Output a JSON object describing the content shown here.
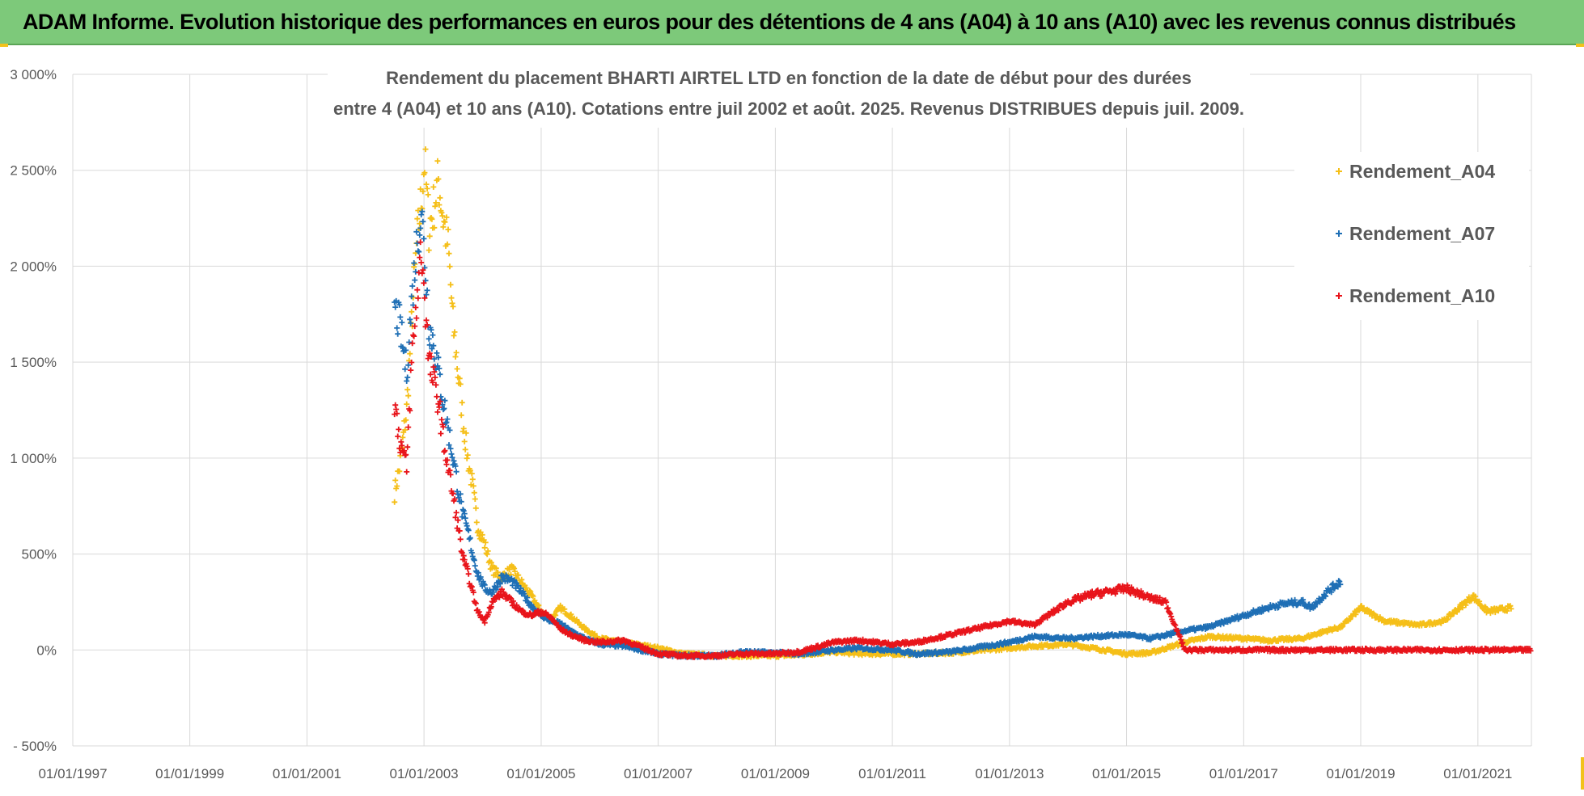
{
  "banner": {
    "title": "ADAM Informe. Evolution historique des performances en euros pour des détentions de 4 ans (A04) à 10 ans (A10) avec les revenus connus distribués"
  },
  "colors": {
    "banner": "#7dc97a",
    "a04": "#f5bf18",
    "a07": "#1f6fb5",
    "a10": "#e8141b",
    "grid": "#d9d9d9",
    "text": "#595959"
  },
  "chart_data": {
    "type": "scatter",
    "title_lines": [
      "Rendement du placement BHARTI AIRTEL LTD en fonction de la date de début pour des durées",
      "entre 4 (A04) et 10 ans (A10).  Cotations entre juil 2002 et août. 2025.  Revenus DISTRIBUES depuis juil. 2009."
    ],
    "xlabel": "",
    "ylabel": "",
    "x_range": [
      "1997-01-01",
      "2021-12-01"
    ],
    "x_ticks": [
      "01/01/1997",
      "01/01/1999",
      "01/01/2001",
      "01/01/2003",
      "01/01/2005",
      "01/01/2007",
      "01/01/2009",
      "01/01/2011",
      "01/01/2013",
      "01/01/2015",
      "01/01/2017",
      "01/01/2019",
      "01/01/2021"
    ],
    "y_range": [
      -500,
      3000
    ],
    "y_ticks": [
      -500,
      0,
      500,
      1000,
      1500,
      2000,
      2500,
      3000
    ],
    "y_tick_labels": [
      "- 500%",
      "0%",
      "500%",
      "1 000%",
      "1 500%",
      "2 000%",
      "2 500%",
      "3 000%"
    ],
    "y_unit": "%",
    "grid": true,
    "legend_position": "top-right",
    "marker": "+",
    "series": [
      {
        "name": "Rendement_A04",
        "color": "#f5bf18",
        "points": [
          [
            "2002-07-01",
            820
          ],
          [
            "2002-08-01",
            950
          ],
          [
            "2002-09-15",
            1250
          ],
          [
            "2002-10-15",
            1700
          ],
          [
            "2002-11-15",
            2100
          ],
          [
            "2002-12-15",
            2350
          ],
          [
            "2003-01-05",
            2550
          ],
          [
            "2003-02-01",
            2200
          ],
          [
            "2003-03-01",
            2300
          ],
          [
            "2003-04-01",
            2450
          ],
          [
            "2003-05-01",
            2250
          ],
          [
            "2003-06-01",
            2100
          ],
          [
            "2003-07-01",
            1700
          ],
          [
            "2003-08-01",
            1450
          ],
          [
            "2003-09-01",
            1200
          ],
          [
            "2003-10-01",
            1000
          ],
          [
            "2003-11-01",
            850
          ],
          [
            "2003-12-01",
            650
          ],
          [
            "2004-01-15",
            550
          ],
          [
            "2004-03-01",
            420
          ],
          [
            "2004-05-01",
            380
          ],
          [
            "2004-07-01",
            420
          ],
          [
            "2004-09-01",
            350
          ],
          [
            "2004-11-01",
            280
          ],
          [
            "2005-01-01",
            200
          ],
          [
            "2005-03-01",
            160
          ],
          [
            "2005-05-01",
            220
          ],
          [
            "2005-07-01",
            180
          ],
          [
            "2005-10-01",
            110
          ],
          [
            "2006-01-01",
            60
          ],
          [
            "2006-06-01",
            40
          ],
          [
            "2007-01-01",
            10
          ],
          [
            "2007-06-01",
            -20
          ],
          [
            "2008-01-01",
            -30
          ],
          [
            "2008-06-01",
            -30
          ],
          [
            "2009-01-01",
            -30
          ],
          [
            "2009-06-01",
            -25
          ],
          [
            "2010-01-01",
            -10
          ],
          [
            "2010-06-01",
            -20
          ],
          [
            "2011-01-01",
            -20
          ],
          [
            "2011-06-01",
            -20
          ],
          [
            "2012-01-01",
            -15
          ],
          [
            "2012-06-01",
            -5
          ],
          [
            "2013-01-01",
            10
          ],
          [
            "2013-06-01",
            20
          ],
          [
            "2014-01-01",
            30
          ],
          [
            "2014-06-01",
            10
          ],
          [
            "2015-01-01",
            -20
          ],
          [
            "2015-06-01",
            -15
          ],
          [
            "2016-01-01",
            40
          ],
          [
            "2016-06-01",
            70
          ],
          [
            "2017-01-01",
            60
          ],
          [
            "2017-06-01",
            50
          ],
          [
            "2018-01-01",
            60
          ],
          [
            "2018-06-01",
            100
          ],
          [
            "2018-09-01",
            120
          ],
          [
            "2019-01-01",
            220
          ],
          [
            "2019-06-01",
            150
          ],
          [
            "2020-01-01",
            130
          ],
          [
            "2020-06-01",
            150
          ],
          [
            "2020-12-01",
            280
          ],
          [
            "2021-03-01",
            200
          ],
          [
            "2021-08-01",
            220
          ]
        ]
      },
      {
        "name": "Rendement_A07",
        "color": "#1f6fb5",
        "points": [
          [
            "2002-07-01",
            1780
          ],
          [
            "2002-08-01",
            1700
          ],
          [
            "2002-09-15",
            1450
          ],
          [
            "2002-10-15",
            1800
          ],
          [
            "2002-11-15",
            2100
          ],
          [
            "2002-12-15",
            2300
          ],
          [
            "2003-01-05",
            2050
          ],
          [
            "2003-02-01",
            1700
          ],
          [
            "2003-03-01",
            1600
          ],
          [
            "2003-04-01",
            1450
          ],
          [
            "2003-05-01",
            1300
          ],
          [
            "2003-06-01",
            1150
          ],
          [
            "2003-07-01",
            1000
          ],
          [
            "2003-08-01",
            850
          ],
          [
            "2003-09-01",
            700
          ],
          [
            "2003-10-01",
            620
          ],
          [
            "2003-11-01",
            500
          ],
          [
            "2003-12-01",
            400
          ],
          [
            "2004-01-15",
            320
          ],
          [
            "2004-03-01",
            300
          ],
          [
            "2004-05-01",
            380
          ],
          [
            "2004-07-01",
            360
          ],
          [
            "2004-09-01",
            300
          ],
          [
            "2004-11-01",
            230
          ],
          [
            "2005-01-01",
            180
          ],
          [
            "2005-03-01",
            150
          ],
          [
            "2005-05-01",
            140
          ],
          [
            "2005-07-01",
            100
          ],
          [
            "2005-10-01",
            60
          ],
          [
            "2006-01-01",
            30
          ],
          [
            "2006-06-01",
            20
          ],
          [
            "2007-01-01",
            -20
          ],
          [
            "2007-06-01",
            -30
          ],
          [
            "2008-01-01",
            -30
          ],
          [
            "2008-06-01",
            -10
          ],
          [
            "2009-01-01",
            -15
          ],
          [
            "2009-06-01",
            -20
          ],
          [
            "2010-01-01",
            0
          ],
          [
            "2010-06-01",
            10
          ],
          [
            "2011-01-01",
            0
          ],
          [
            "2011-06-01",
            -20
          ],
          [
            "2012-01-01",
            -10
          ],
          [
            "2012-06-01",
            10
          ],
          [
            "2013-01-01",
            40
          ],
          [
            "2013-06-01",
            70
          ],
          [
            "2014-01-01",
            60
          ],
          [
            "2014-06-01",
            70
          ],
          [
            "2015-01-01",
            80
          ],
          [
            "2015-06-01",
            60
          ],
          [
            "2016-01-01",
            100
          ],
          [
            "2016-06-01",
            120
          ],
          [
            "2017-01-01",
            180
          ],
          [
            "2017-06-01",
            220
          ],
          [
            "2017-09-01",
            240
          ],
          [
            "2018-01-01",
            250
          ],
          [
            "2018-03-01",
            220
          ],
          [
            "2018-06-01",
            300
          ],
          [
            "2018-09-01",
            360
          ]
        ]
      },
      {
        "name": "Rendement_A10",
        "color": "#e8141b",
        "points": [
          [
            "2002-07-01",
            1300
          ],
          [
            "2002-08-01",
            1100
          ],
          [
            "2002-09-15",
            950
          ],
          [
            "2002-10-15",
            1500
          ],
          [
            "2002-11-15",
            1800
          ],
          [
            "2002-12-15",
            2100
          ],
          [
            "2003-01-05",
            1850
          ],
          [
            "2003-02-01",
            1500
          ],
          [
            "2003-03-01",
            1400
          ],
          [
            "2003-04-01",
            1300
          ],
          [
            "2003-05-01",
            1100
          ],
          [
            "2003-06-01",
            950
          ],
          [
            "2003-07-01",
            800
          ],
          [
            "2003-08-01",
            650
          ],
          [
            "2003-09-01",
            480
          ],
          [
            "2003-10-01",
            400
          ],
          [
            "2003-11-01",
            300
          ],
          [
            "2003-12-01",
            200
          ],
          [
            "2004-01-15",
            150
          ],
          [
            "2004-03-01",
            250
          ],
          [
            "2004-05-01",
            300
          ],
          [
            "2004-07-01",
            250
          ],
          [
            "2004-09-01",
            200
          ],
          [
            "2004-11-01",
            180
          ],
          [
            "2005-01-01",
            200
          ],
          [
            "2005-03-01",
            170
          ],
          [
            "2005-05-01",
            110
          ],
          [
            "2005-07-01",
            80
          ],
          [
            "2005-10-01",
            50
          ],
          [
            "2006-01-01",
            40
          ],
          [
            "2006-06-01",
            50
          ],
          [
            "2007-01-01",
            -20
          ],
          [
            "2007-06-01",
            -30
          ],
          [
            "2008-01-01",
            -30
          ],
          [
            "2008-06-01",
            -20
          ],
          [
            "2009-01-01",
            -20
          ],
          [
            "2009-06-01",
            -10
          ],
          [
            "2010-01-01",
            40
          ],
          [
            "2010-06-01",
            50
          ],
          [
            "2011-01-01",
            30
          ],
          [
            "2011-06-01",
            40
          ],
          [
            "2012-01-01",
            80
          ],
          [
            "2012-06-01",
            110
          ],
          [
            "2013-01-01",
            150
          ],
          [
            "2013-06-01",
            130
          ],
          [
            "2014-01-01",
            250
          ],
          [
            "2014-06-01",
            290
          ],
          [
            "2015-01-01",
            320
          ],
          [
            "2015-06-01",
            270
          ],
          [
            "2015-09-01",
            250
          ],
          [
            "2016-01-01",
            0
          ],
          [
            "2017-01-01",
            0
          ],
          [
            "2018-01-01",
            0
          ],
          [
            "2019-01-01",
            0
          ],
          [
            "2020-01-01",
            0
          ],
          [
            "2021-01-01",
            0
          ],
          [
            "2021-12-01",
            0
          ]
        ]
      }
    ]
  }
}
